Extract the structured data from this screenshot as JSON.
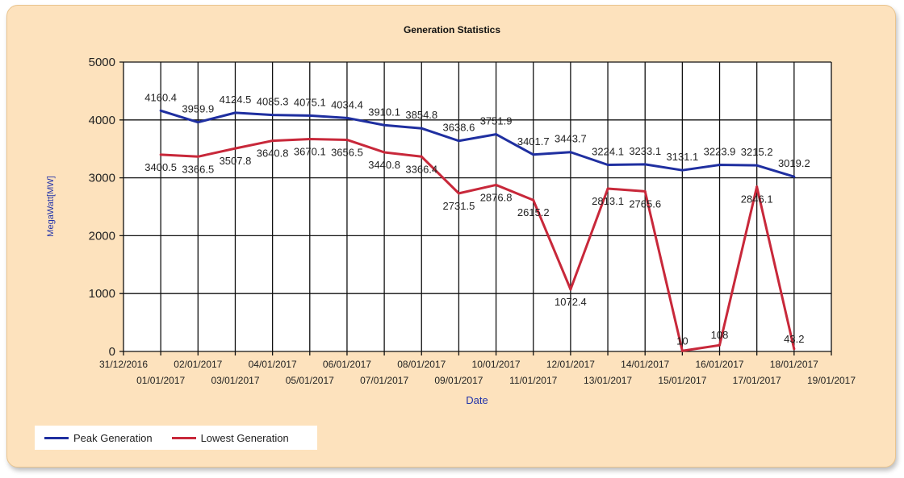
{
  "chart_data": {
    "type": "line",
    "title": "Generation Statistics",
    "xlabel": "Date",
    "ylabel": "MegaWatt[MW]",
    "ylim": [
      0,
      5000
    ],
    "yticks": [
      "0",
      "1000",
      "2000",
      "3000",
      "4000",
      "5000"
    ],
    "xticks": [
      "31/12/2016",
      "01/01/2017",
      "02/01/2017",
      "03/01/2017",
      "04/01/2017",
      "05/01/2017",
      "06/01/2017",
      "07/01/2017",
      "08/01/2017",
      "09/01/2017",
      "10/01/2017",
      "11/01/2017",
      "12/01/2017",
      "13/01/2017",
      "14/01/2017",
      "15/01/2017",
      "16/01/2017",
      "17/01/2017",
      "18/01/2017",
      "19/01/2017"
    ],
    "x": [
      "01/01/2017",
      "02/01/2017",
      "03/01/2017",
      "04/01/2017",
      "05/01/2017",
      "06/01/2017",
      "07/01/2017",
      "08/01/2017",
      "09/01/2017",
      "10/01/2017",
      "11/01/2017",
      "12/01/2017",
      "13/01/2017",
      "14/01/2017",
      "15/01/2017",
      "16/01/2017",
      "17/01/2017",
      "18/01/2017"
    ],
    "grid": true,
    "legend": "bottom-left",
    "series": [
      {
        "name": "Peak Generation",
        "color": "#1f2fa0",
        "values": [
          4160.4,
          3959.9,
          4124.5,
          4085.3,
          4075.1,
          4034.4,
          3910.1,
          3854.8,
          3638.6,
          3751.9,
          3401.7,
          3443.7,
          3224.1,
          3233.1,
          3131.1,
          3223.9,
          3215.2,
          3019.2
        ]
      },
      {
        "name": "Lowest Generation",
        "color": "#c8283a",
        "values": [
          3400.5,
          3366.5,
          3507.8,
          3640.8,
          3670.1,
          3656.5,
          3440.8,
          3366.4,
          2731.5,
          2876.8,
          2615.2,
          1072.4,
          2813.1,
          2765.6,
          10,
          108,
          2846.1,
          43.2
        ]
      }
    ]
  }
}
